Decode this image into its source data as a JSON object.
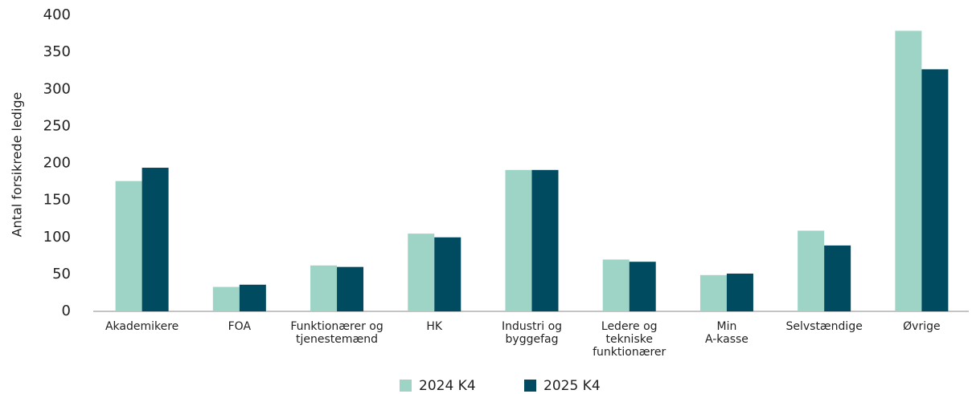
{
  "chart_data": {
    "type": "bar",
    "y_label": "Antal forsikrede ledige",
    "categories": [
      "Akademikere",
      "FOA",
      "Funktionærer og\ntjenestemænd",
      "HK",
      "Industri og\nbyggefag",
      "Ledere og\ntekniske\nfunktionærer",
      "Min\nA-kasse",
      "Selvstændige",
      "Øvrige"
    ],
    "series": [
      {
        "name": "2024 K4",
        "color": "#9dd4c5",
        "values": [
          176,
          33,
          62,
          105,
          191,
          70,
          49,
          109,
          379
        ]
      },
      {
        "name": "2025 K4",
        "color": "#004b5f",
        "values": [
          194,
          36,
          60,
          100,
          191,
          67,
          51,
          89,
          327
        ]
      }
    ],
    "ylim": [
      0,
      400
    ],
    "yticks": [
      0,
      50,
      100,
      150,
      200,
      250,
      300,
      350,
      400
    ],
    "grid": false
  }
}
